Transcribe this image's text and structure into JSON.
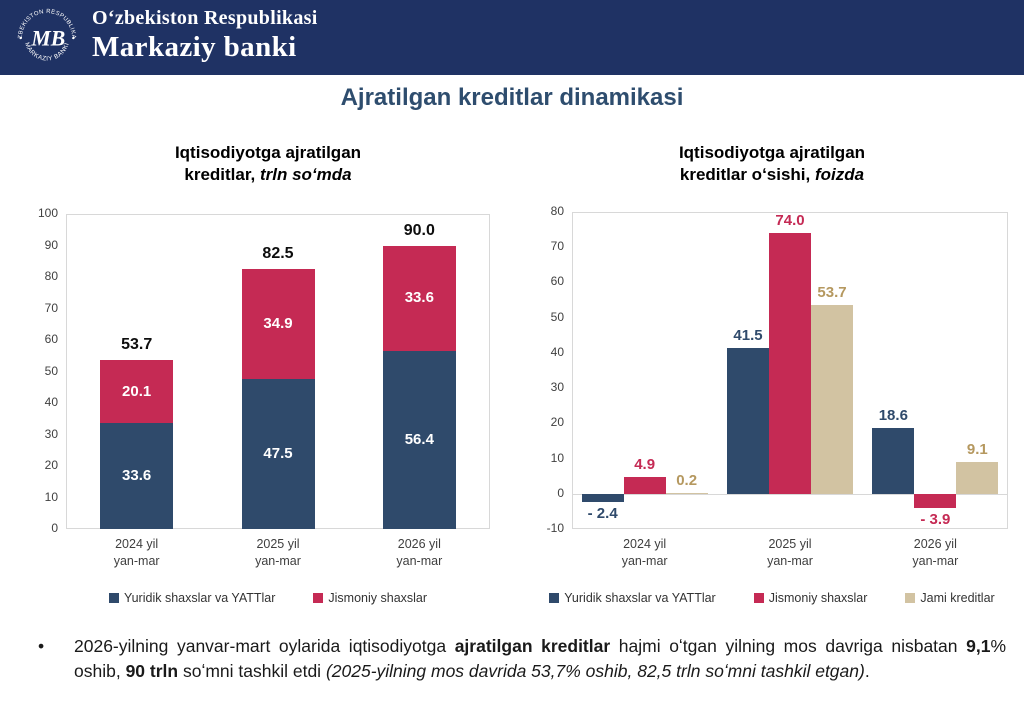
{
  "header": {
    "bg_color": "#1f3264",
    "logo": {
      "top_arc": "OʻZBEKISTON RESPUBLIKASI",
      "bottom_arc": "MARKAZIY BANKI",
      "monogram": "MB"
    },
    "line1": "Oʻzbekiston Respublikasi",
    "line2": "Markaziy banki"
  },
  "page_title": "Ajratilgan kreditlar dinamikasi",
  "accent_colors": {
    "header_navy": "#1f3264",
    "title_blue": "#2e4d6e",
    "navy": "#2f4a6b",
    "crimson": "#c52a54",
    "tan": "#d2c3a2",
    "tan_label": "#b5985f"
  },
  "chart_data": [
    {
      "type": "bar",
      "subtype": "stacked",
      "title": {
        "line1": "Iqtisodiyotga ajratilgan",
        "bold": "kreditlar,",
        "italic": " trln soʻmda"
      },
      "categories": [
        [
          "2024 yil",
          "yan-mar"
        ],
        [
          "2025 yil",
          "yan-mar"
        ],
        [
          "2026 yil",
          "yan-mar"
        ]
      ],
      "series": [
        {
          "name": "Yuridik shaxslar va YATTlar",
          "color": "#2f4a6b",
          "values": [
            33.6,
            47.5,
            56.4
          ],
          "labels": [
            "33.6",
            "47.5",
            "56.4"
          ]
        },
        {
          "name": "Jismoniy shaxslar",
          "color": "#c52a54",
          "values": [
            20.1,
            34.9,
            33.6
          ],
          "labels": [
            "20.1",
            "34.9",
            "33.6"
          ]
        }
      ],
      "totals": [
        "53.7",
        "82.5",
        "90.0"
      ],
      "ylim": [
        0,
        100
      ],
      "ytick_step": 10,
      "grid": false,
      "legend_position": "bottom"
    },
    {
      "type": "bar",
      "subtype": "grouped",
      "title": {
        "line1": "Iqtisodiyotga ajratilgan",
        "bold": "kreditlar oʻsishi,",
        "italic": " foizda"
      },
      "categories": [
        [
          "2024 yil",
          "yan-mar"
        ],
        [
          "2025 yil",
          "yan-mar"
        ],
        [
          "2026 yil",
          "yan-mar"
        ]
      ],
      "series": [
        {
          "name": "Yuridik shaxslar va YATTlar",
          "color": "#2f4a6b",
          "label_color": "#2f4a6b",
          "values": [
            -2.4,
            41.5,
            18.6
          ],
          "labels": [
            "- 2.4",
            "41.5",
            "18.6"
          ]
        },
        {
          "name": "Jismoniy shaxslar",
          "color": "#c52a54",
          "label_color": "#c52a54",
          "values": [
            4.9,
            74.0,
            -3.9
          ],
          "labels": [
            "4.9",
            "74.0",
            "- 3.9"
          ]
        },
        {
          "name": "Jami kreditlar",
          "color": "#d2c3a2",
          "label_color": "#b5985f",
          "values": [
            0.2,
            53.7,
            9.1
          ],
          "labels": [
            "0.2",
            "53.7",
            "9.1"
          ]
        }
      ],
      "ylim": [
        -10,
        80
      ],
      "ytick_step": 10,
      "grid": false,
      "legend_position": "bottom"
    }
  ],
  "note": {
    "bullet": "•",
    "segments": [
      {
        "t": "2026-yilning yanvar-mart oylarida iqtisodiyotga "
      },
      {
        "t": "ajratilgan kreditlar",
        "b": true
      },
      {
        "t": " hajmi oʻtgan yilning mos davriga nisbatan "
      },
      {
        "t": "9,1",
        "b": true
      },
      {
        "t": "% oshib, "
      },
      {
        "t": "90 trln",
        "b": true
      },
      {
        "t": " soʻmni tashkil etdi "
      },
      {
        "t": "(2025-yilning mos davrida 53,7% oshib, 82,5 trln soʻmni tashkil etgan)",
        "i": true
      },
      {
        "t": "."
      }
    ]
  }
}
